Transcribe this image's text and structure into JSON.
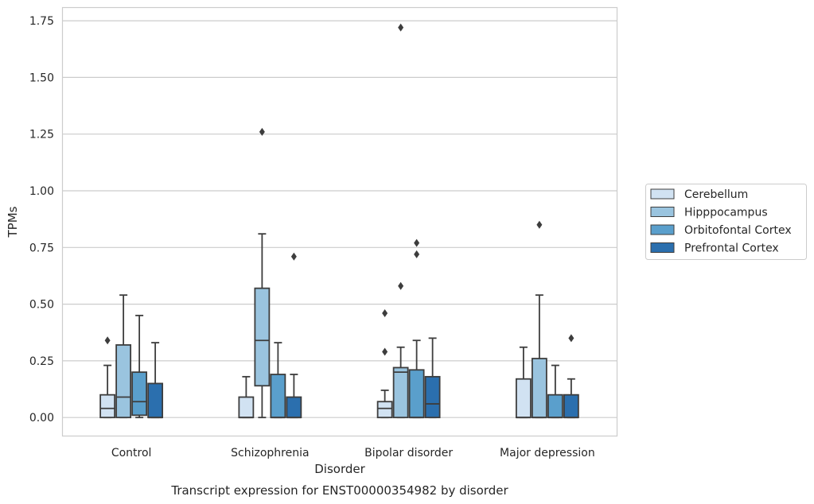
{
  "caption": "Transcript expression for ENST00000354982 by disorder",
  "chart_data": {
    "type": "box",
    "title": "",
    "xlabel": "Disorder",
    "ylabel": "TPMs",
    "ylim": [
      -0.08,
      1.81
    ],
    "yticks": [
      "0.00",
      "0.25",
      "0.50",
      "0.75",
      "1.00",
      "1.25",
      "1.50",
      "1.75"
    ],
    "ytick_values": [
      0,
      0.25,
      0.5,
      0.75,
      1.0,
      1.25,
      1.5,
      1.75
    ],
    "grid": "horizontal",
    "legend_position": "right",
    "categories": [
      "Control",
      "Schizophrenia",
      "Bipolar disorder",
      "Major depression"
    ],
    "series": [
      {
        "name": "Cerebellum",
        "color": "#d1e2f2",
        "boxes": [
          {
            "q1": 0.0,
            "median": 0.04,
            "q3": 0.1,
            "whisker_low": 0.0,
            "whisker_high": 0.23,
            "outliers": [
              0.34
            ]
          },
          {
            "q1": 0.0,
            "median": 0.0,
            "q3": 0.09,
            "whisker_low": 0.0,
            "whisker_high": 0.18,
            "outliers": []
          },
          {
            "q1": 0.0,
            "median": 0.04,
            "q3": 0.07,
            "whisker_low": 0.0,
            "whisker_high": 0.12,
            "outliers": [
              0.29,
              0.46
            ]
          },
          {
            "q1": 0.0,
            "median": 0.0,
            "q3": 0.17,
            "whisker_low": 0.0,
            "whisker_high": 0.31,
            "outliers": []
          }
        ]
      },
      {
        "name": "Hipppocampus",
        "color": "#9ac4df",
        "boxes": [
          {
            "q1": 0.0,
            "median": 0.09,
            "q3": 0.32,
            "whisker_low": 0.0,
            "whisker_high": 0.54,
            "outliers": []
          },
          {
            "q1": 0.14,
            "median": 0.34,
            "q3": 0.57,
            "whisker_low": 0.0,
            "whisker_high": 0.81,
            "outliers": [
              1.26
            ]
          },
          {
            "q1": 0.0,
            "median": 0.2,
            "q3": 0.22,
            "whisker_low": 0.0,
            "whisker_high": 0.31,
            "outliers": [
              0.58,
              1.72
            ]
          },
          {
            "q1": 0.0,
            "median": 0.0,
            "q3": 0.26,
            "whisker_low": 0.0,
            "whisker_high": 0.54,
            "outliers": [
              0.85
            ]
          }
        ]
      },
      {
        "name": "Orbitofontal Cortex",
        "color": "#5a9fcc",
        "boxes": [
          {
            "q1": 0.01,
            "median": 0.07,
            "q3": 0.2,
            "whisker_low": 0.0,
            "whisker_high": 0.45,
            "outliers": []
          },
          {
            "q1": 0.0,
            "median": 0.0,
            "q3": 0.19,
            "whisker_low": 0.0,
            "whisker_high": 0.33,
            "outliers": []
          },
          {
            "q1": 0.0,
            "median": 0.0,
            "q3": 0.21,
            "whisker_low": 0.0,
            "whisker_high": 0.34,
            "outliers": [
              0.72,
              0.77
            ]
          },
          {
            "q1": 0.0,
            "median": 0.0,
            "q3": 0.1,
            "whisker_low": 0.0,
            "whisker_high": 0.23,
            "outliers": []
          }
        ]
      },
      {
        "name": "Prefrontal Cortex",
        "color": "#2b6fae",
        "boxes": [
          {
            "q1": 0.0,
            "median": 0.0,
            "q3": 0.15,
            "whisker_low": 0.0,
            "whisker_high": 0.33,
            "outliers": []
          },
          {
            "q1": 0.0,
            "median": 0.0,
            "q3": 0.09,
            "whisker_low": 0.0,
            "whisker_high": 0.19,
            "outliers": [
              0.71
            ]
          },
          {
            "q1": 0.0,
            "median": 0.06,
            "q3": 0.18,
            "whisker_low": 0.0,
            "whisker_high": 0.35,
            "outliers": []
          },
          {
            "q1": 0.0,
            "median": 0.0,
            "q3": 0.1,
            "whisker_low": 0.0,
            "whisker_high": 0.17,
            "outliers": [
              0.35
            ]
          }
        ]
      }
    ]
  }
}
